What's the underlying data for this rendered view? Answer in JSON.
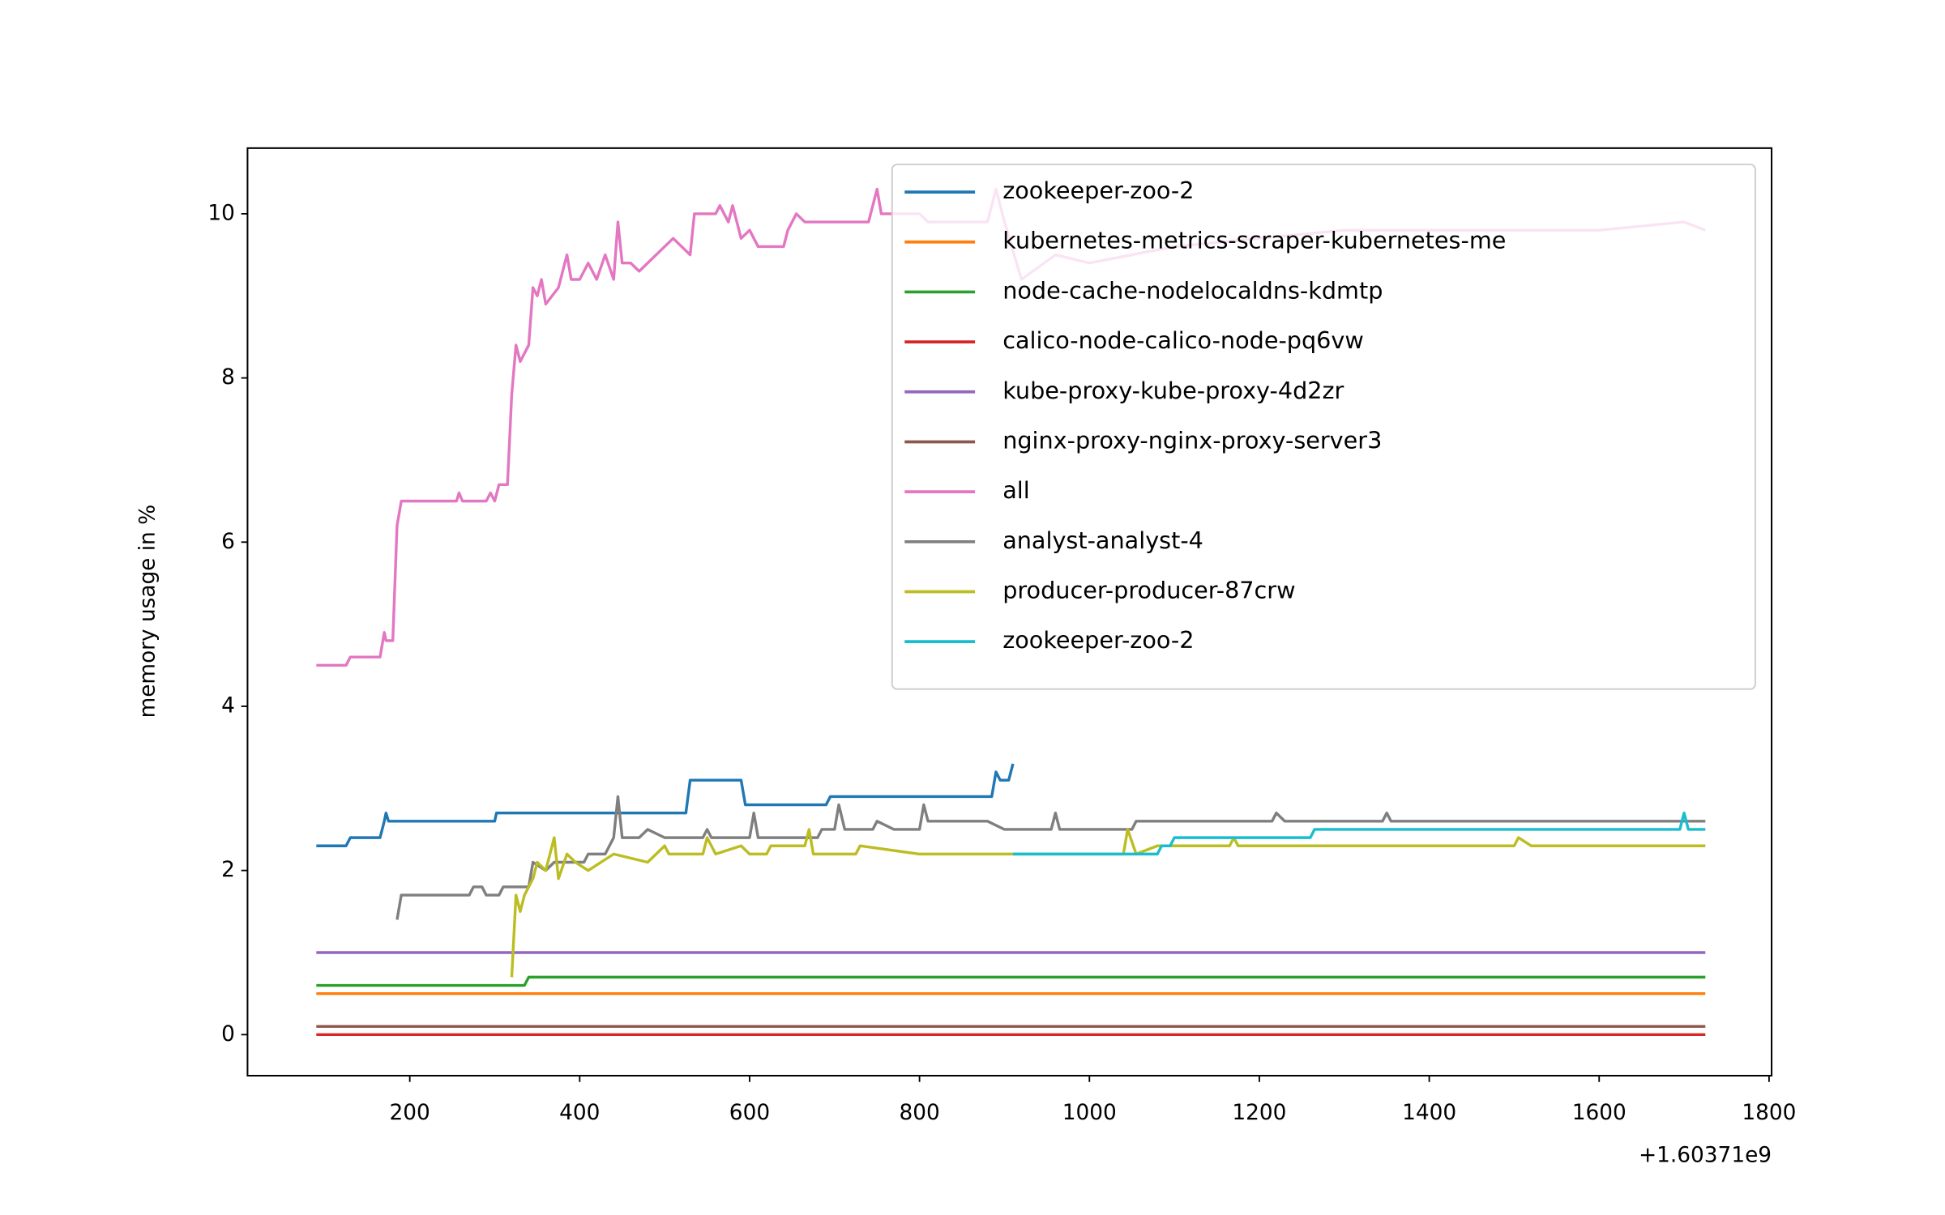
{
  "chart_data": {
    "type": "line",
    "y_label": "memory usage in %",
    "x_offset_label": "+1.60371e9",
    "xlim": [
      9,
      1803
    ],
    "ylim": [
      -0.5,
      10.8
    ],
    "xticks": [
      200,
      400,
      600,
      800,
      1000,
      1200,
      1400,
      1600,
      1800
    ],
    "yticks": [
      0,
      2,
      4,
      6,
      8,
      10
    ],
    "grid": false,
    "legend": "upper right",
    "series": [
      {
        "name": "zookeeper-zoo-2",
        "color": "#1f77b4",
        "x": [
          90,
          125,
          130,
          165,
          170,
          172,
          175,
          300,
          302,
          525,
          530,
          590,
          595,
          690,
          695,
          885,
          890,
          895,
          905,
          910
        ],
        "values": [
          2.3,
          2.3,
          2.4,
          2.4,
          2.6,
          2.7,
          2.6,
          2.6,
          2.7,
          2.7,
          3.1,
          3.1,
          2.8,
          2.8,
          2.9,
          2.9,
          3.2,
          3.1,
          3.1,
          3.3
        ]
      },
      {
        "name": "kubernetes-metrics-scraper-kubernetes-me",
        "color": "#ff7f0e",
        "x": [
          90,
          1725
        ],
        "values": [
          0.5,
          0.5
        ]
      },
      {
        "name": "node-cache-nodelocaldns-kdmtp",
        "color": "#2ca02c",
        "x": [
          90,
          335,
          340,
          1725
        ],
        "values": [
          0.6,
          0.6,
          0.7,
          0.7
        ]
      },
      {
        "name": "calico-node-calico-node-pq6vw",
        "color": "#d62728",
        "x": [
          90,
          1725
        ],
        "values": [
          0,
          0
        ]
      },
      {
        "name": "kube-proxy-kube-proxy-4d2zr",
        "color": "#9467bd",
        "x": [
          90,
          1725
        ],
        "values": [
          1,
          1
        ]
      },
      {
        "name": "nginx-proxy-nginx-proxy-server3",
        "color": "#8c564b",
        "x": [
          90,
          1725
        ],
        "values": [
          0.1,
          0.1
        ]
      },
      {
        "name": "all",
        "color": "#e377c2",
        "x": [
          90,
          125,
          130,
          165,
          170,
          172,
          180,
          185,
          190,
          255,
          258,
          262,
          290,
          295,
          300,
          305,
          315,
          320,
          325,
          330,
          340,
          345,
          350,
          355,
          360,
          375,
          385,
          390,
          400,
          410,
          420,
          430,
          440,
          445,
          450,
          460,
          470,
          480,
          500,
          510,
          520,
          530,
          535,
          560,
          565,
          575,
          580,
          590,
          600,
          610,
          640,
          645,
          655,
          665,
          740,
          750,
          755,
          800,
          810,
          880,
          890,
          900,
          920,
          960,
          1000,
          1100,
          1200,
          1300,
          1400,
          1600,
          1700,
          1725
        ],
        "values": [
          4.5,
          4.5,
          4.6,
          4.6,
          4.9,
          4.8,
          4.8,
          6.2,
          6.5,
          6.5,
          6.6,
          6.5,
          6.5,
          6.6,
          6.5,
          6.7,
          6.7,
          7.8,
          8.4,
          8.2,
          8.4,
          9.1,
          9.0,
          9.2,
          8.9,
          9.1,
          9.5,
          9.2,
          9.2,
          9.4,
          9.2,
          9.5,
          9.2,
          9.9,
          9.4,
          9.4,
          9.3,
          9.4,
          9.6,
          9.7,
          9.6,
          9.5,
          10.0,
          10.0,
          10.1,
          9.9,
          10.1,
          9.7,
          9.8,
          9.6,
          9.6,
          9.8,
          10.0,
          9.9,
          9.9,
          10.3,
          10.0,
          10.0,
          9.9,
          9.9,
          10.3,
          9.9,
          9.2,
          9.5,
          9.4,
          9.6,
          9.7,
          9.8,
          9.8,
          9.8,
          9.9,
          9.8
        ]
      },
      {
        "name": "analyst-analyst-4",
        "color": "#7f7f7f",
        "x": [
          185,
          190,
          270,
          275,
          285,
          290,
          305,
          310,
          340,
          345,
          360,
          370,
          405,
          410,
          430,
          440,
          445,
          450,
          470,
          480,
          500,
          545,
          550,
          555,
          600,
          605,
          610,
          680,
          685,
          700,
          705,
          712,
          745,
          750,
          770,
          800,
          805,
          810,
          880,
          900,
          955,
          960,
          965,
          1050,
          1055,
          1215,
          1220,
          1230,
          1345,
          1350,
          1355,
          1725
        ],
        "values": [
          1.4,
          1.7,
          1.7,
          1.8,
          1.8,
          1.7,
          1.7,
          1.8,
          1.8,
          2.1,
          2.0,
          2.1,
          2.1,
          2.2,
          2.2,
          2.4,
          2.9,
          2.4,
          2.4,
          2.5,
          2.4,
          2.4,
          2.5,
          2.4,
          2.4,
          2.7,
          2.4,
          2.4,
          2.5,
          2.5,
          2.8,
          2.5,
          2.5,
          2.6,
          2.5,
          2.5,
          2.8,
          2.6,
          2.6,
          2.5,
          2.5,
          2.7,
          2.5,
          2.5,
          2.6,
          2.6,
          2.7,
          2.6,
          2.6,
          2.7,
          2.6,
          2.6
        ]
      },
      {
        "name": "producer-producer-87crw",
        "color": "#bcbd22",
        "x": [
          320,
          325,
          330,
          335,
          345,
          350,
          360,
          370,
          375,
          385,
          395,
          410,
          440,
          480,
          500,
          505,
          545,
          550,
          560,
          590,
          600,
          620,
          625,
          665,
          670,
          675,
          725,
          730,
          800,
          910,
          1040,
          1045,
          1055,
          1080,
          1165,
          1170,
          1175,
          1500,
          1505,
          1520,
          1725
        ],
        "values": [
          0.7,
          1.7,
          1.5,
          1.7,
          1.9,
          2.1,
          2.0,
          2.4,
          1.9,
          2.2,
          2.1,
          2.0,
          2.2,
          2.1,
          2.3,
          2.2,
          2.2,
          2.4,
          2.2,
          2.3,
          2.2,
          2.2,
          2.3,
          2.3,
          2.5,
          2.2,
          2.2,
          2.3,
          2.2,
          2.2,
          2.2,
          2.5,
          2.2,
          2.3,
          2.3,
          2.4,
          2.3,
          2.3,
          2.4,
          2.3,
          2.3
        ]
      },
      {
        "name": "zookeeper-zoo-2",
        "color": "#17becf",
        "x": [
          910,
          1080,
          1085,
          1095,
          1100,
          1260,
          1265,
          1695,
          1700,
          1705,
          1725
        ],
        "values": [
          2.2,
          2.2,
          2.3,
          2.3,
          2.4,
          2.4,
          2.5,
          2.5,
          2.7,
          2.5,
          2.5
        ]
      }
    ]
  }
}
